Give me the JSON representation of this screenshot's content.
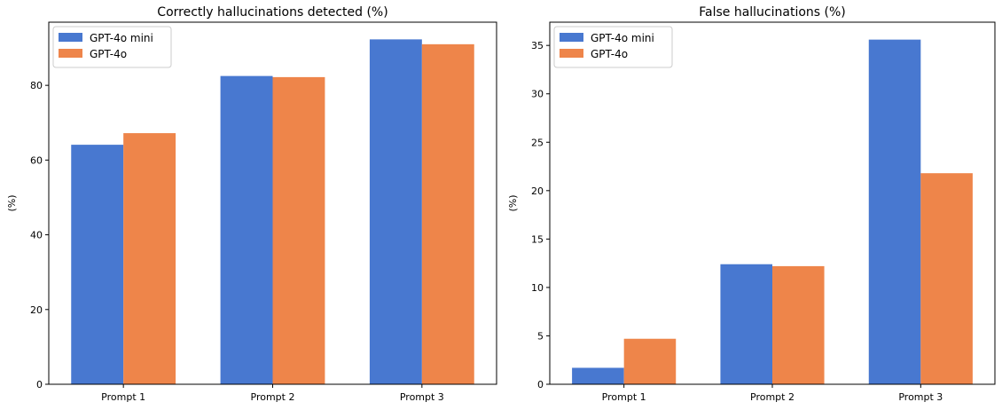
{
  "chart_data": [
    {
      "type": "bar",
      "title": "Correctly hallucinations detected (%)",
      "xlabel": "",
      "ylabel": "(%)",
      "categories": [
        "Prompt 1",
        "Prompt 2",
        "Prompt 3"
      ],
      "series": [
        {
          "name": "GPT-4o mini",
          "color": "#4878d0",
          "values": [
            64.1,
            82.5,
            92.3
          ]
        },
        {
          "name": "GPT-4o",
          "color": "#ee854a",
          "values": [
            67.2,
            82.2,
            91.0
          ]
        }
      ],
      "ylim": [
        0,
        96.9
      ],
      "yticks": [
        0,
        20,
        40,
        60,
        80
      ],
      "grid": false,
      "legend": "top-left"
    },
    {
      "type": "bar",
      "title": "False hallucinations (%)",
      "xlabel": "",
      "ylabel": "(%)",
      "categories": [
        "Prompt 1",
        "Prompt 2",
        "Prompt 3"
      ],
      "series": [
        {
          "name": "GPT-4o mini",
          "color": "#4878d0",
          "values": [
            1.7,
            12.4,
            35.6
          ]
        },
        {
          "name": "GPT-4o",
          "color": "#ee854a",
          "values": [
            4.7,
            12.2,
            21.8
          ]
        }
      ],
      "ylim": [
        0,
        37.4
      ],
      "yticks": [
        0,
        5,
        10,
        15,
        20,
        25,
        30,
        35
      ],
      "grid": false,
      "legend": "top-left"
    }
  ]
}
